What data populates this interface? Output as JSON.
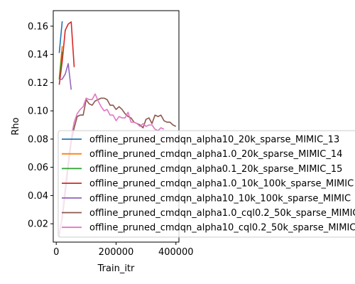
{
  "chart_data": {
    "type": "line",
    "title": "",
    "xlabel": "Train_itr",
    "ylabel": "Rho",
    "xlim": [
      -10000,
      410000
    ],
    "ylim": [
      0.007,
      0.171
    ],
    "xticks": [
      0,
      200000,
      400000
    ],
    "xtick_labels": [
      "0",
      "200000",
      "400000"
    ],
    "yticks": [
      0.02,
      0.04,
      0.06,
      0.08,
      0.1,
      0.12,
      0.14,
      0.16
    ],
    "ytick_labels": [
      "0.02",
      "0.04",
      "0.06",
      "0.08",
      "0.10",
      "0.12",
      "0.14",
      "0.16"
    ],
    "grid": false,
    "legend_position": "lower-right",
    "series": [
      {
        "name": "offline_pruned_cmdqn_alpha10_20k_sparse_MIMIC_13",
        "color": "#1f77b4",
        "x": [
          10000,
          20000
        ],
        "y": [
          0.141,
          0.1635
        ]
      },
      {
        "name": "offline_pruned_cmdqn_alpha1.0_20k_sparse_MIMIC_14",
        "color": "#ff7f0e",
        "x": [
          10000,
          20000
        ],
        "y": [
          0.123,
          0.146
        ]
      },
      {
        "name": "offline_pruned_cmdqn_alpha0.1_20k_sparse_MIMIC_15",
        "color": "#2ca02c",
        "x": [
          10000,
          20000
        ],
        "y": [
          0.122,
          0.142
        ]
      },
      {
        "name": "offline_pruned_cmdqn_alpha1.0_10k_100k_sparse_MIMIC",
        "color": "#d62728",
        "x": [
          10000,
          20000,
          30000,
          40000,
          50000,
          60000
        ],
        "y": [
          0.1185,
          0.135,
          0.157,
          0.1615,
          0.163,
          0.131
        ]
      },
      {
        "name": "offline_pruned_cmdqn_alpha10_10k_100k_sparse_MIMIC",
        "color": "#9467bd",
        "x": [
          10000,
          20000,
          30000,
          40000,
          50000
        ],
        "y": [
          0.122,
          0.1225,
          0.126,
          0.1335,
          0.115
        ]
      },
      {
        "name": "offline_pruned_cmdqn_alpha1.0_cql0.2_50k_sparse_MIMIC",
        "color": "#8c564b",
        "x": [
          10000,
          20000,
          30000,
          40000,
          50000,
          60000,
          70000,
          80000,
          90000,
          100000,
          110000,
          120000,
          130000,
          140000,
          150000,
          160000,
          170000,
          180000,
          190000,
          200000,
          210000,
          220000,
          230000,
          240000,
          250000,
          260000,
          270000,
          280000,
          290000,
          300000,
          310000,
          320000,
          330000,
          340000,
          350000,
          360000,
          370000,
          380000,
          390000,
          400000
        ],
        "y": [
          0.013,
          0.024,
          0.042,
          0.061,
          0.078,
          0.088,
          0.096,
          0.097,
          0.097,
          0.108,
          0.105,
          0.104,
          0.107,
          0.108,
          0.109,
          0.109,
          0.108,
          0.104,
          0.104,
          0.101,
          0.103,
          0.101,
          0.098,
          0.096,
          0.095,
          0.092,
          0.091,
          0.09,
          0.088,
          0.094,
          0.095,
          0.091,
          0.097,
          0.096,
          0.097,
          0.093,
          0.092,
          0.092,
          0.09,
          0.089
        ]
      },
      {
        "name": "offline_pruned_cmdqn_alpha10_cql0.2_50k_sparse_MIMIC",
        "color": "#e377c2",
        "x": [
          10000,
          20000,
          30000,
          40000,
          50000,
          60000,
          70000,
          80000,
          90000,
          100000,
          110000,
          120000,
          130000,
          140000,
          150000,
          160000,
          170000,
          180000,
          190000,
          200000,
          210000,
          220000,
          230000,
          240000,
          250000,
          260000,
          270000,
          280000,
          290000,
          300000,
          310000,
          320000,
          330000,
          340000,
          350000,
          360000
        ],
        "y": [
          0.011,
          0.026,
          0.046,
          0.064,
          0.081,
          0.092,
          0.098,
          0.101,
          0.103,
          0.109,
          0.108,
          0.108,
          0.112,
          0.107,
          0.103,
          0.1,
          0.101,
          0.097,
          0.097,
          0.093,
          0.096,
          0.095,
          0.095,
          0.099,
          0.092,
          0.092,
          0.091,
          0.089,
          0.091,
          0.089,
          0.09,
          0.09,
          0.087,
          0.086,
          0.088,
          0.087
        ]
      }
    ]
  }
}
